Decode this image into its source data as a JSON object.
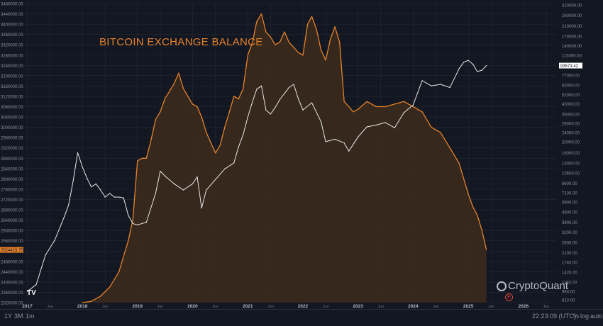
{
  "title": "BITCOIN EXCHANGE BALANCE",
  "logo_text": "CryptoQuant",
  "tv_logo": "TV",
  "event_marker": "E",
  "timeframes": [
    "1Y",
    "3M",
    "1m"
  ],
  "clock": "22:23:09 (UTC)",
  "options": [
    "%",
    "log",
    "auto"
  ],
  "colors": {
    "background": "#131722",
    "balance": "#e6822a",
    "price": "#e8e8e8",
    "grid": "#2a2e39"
  },
  "chart_data": {
    "type": "line",
    "title": "BITCOIN EXCHANGE BALANCE",
    "x_ticks": [
      "2017",
      "Jun",
      "2018",
      "Jun",
      "2019",
      "Jun",
      "2020",
      "Jun",
      "2021",
      "Jun",
      "2022",
      "Jun",
      "2023",
      "Jun",
      "2024",
      "Jun",
      "2025",
      "Jun",
      "2026",
      "Jun"
    ],
    "x_tick_dates": [
      "2017-01",
      "2017-06",
      "2018-01",
      "2018-06",
      "2019-01",
      "2019-06",
      "2020-01",
      "2020-06",
      "2021-01",
      "2021-06",
      "2022-01",
      "2022-06",
      "2023-01",
      "2023-06",
      "2024-01",
      "2024-06",
      "2025-01",
      "2025-06",
      "2026-01",
      "2026-06"
    ],
    "left_axis": {
      "ticks": [
        "3480000.00",
        "3440000.00",
        "3400000.00",
        "3360000.00",
        "3320000.00",
        "3280000.00",
        "3240000.00",
        "3200000.00",
        "3160000.00",
        "3120000.00",
        "3080000.00",
        "3040000.00",
        "3000000.00",
        "2960000.00",
        "2920000.00",
        "2880000.00",
        "2840000.00",
        "2800000.00",
        "2760000.00",
        "2720000.00",
        "2680000.00",
        "2640000.00",
        "2600000.00",
        "2560000.00",
        "2520000.00",
        "2480000.00",
        "2440000.00",
        "2400000.00",
        "2360000.00",
        "2320000.00"
      ],
      "range": [
        2320000,
        3480000
      ],
      "current_label": "2524423.75"
    },
    "right_axis": {
      "ticks": [
        "320000.00",
        "260000.00",
        "210000.00",
        "170000.00",
        "140000.00",
        "115000.00",
        "93000.00",
        "77000.00",
        "63000.00",
        "52000.00",
        "43000.00",
        "35000.00",
        "29000.00",
        "24000.00",
        "20000.00",
        "16000.00",
        "13000.00",
        "10600.00",
        "8600.00",
        "7100.00",
        "5900.00",
        "4800.00",
        "3900.00",
        "3200.00",
        "2600.00",
        "2100.00",
        "1740.00",
        "1420.00",
        "1160.00",
        "960.00",
        "810.00"
      ],
      "scale": "log",
      "current_label": "93573.42"
    },
    "series": [
      {
        "name": "Exchange Balance",
        "axis": "left",
        "color": "#e6822a",
        "style": "area",
        "x": [
          "2018-01",
          "2018-03",
          "2018-05",
          "2018-07",
          "2018-09",
          "2018-10",
          "2018-11",
          "2018-12",
          "2019-01",
          "2019-02",
          "2019-03",
          "2019-04",
          "2019-05",
          "2019-06",
          "2019-07",
          "2019-08",
          "2019-09",
          "2019-10",
          "2019-11",
          "2019-12",
          "2020-01",
          "2020-02",
          "2020-03",
          "2020-04",
          "2020-05",
          "2020-06",
          "2020-07",
          "2020-08",
          "2020-09",
          "2020-10",
          "2020-11",
          "2020-12",
          "2021-01",
          "2021-02",
          "2021-03",
          "2021-04",
          "2021-05",
          "2021-06",
          "2021-07",
          "2021-08",
          "2021-09",
          "2021-10",
          "2021-11",
          "2021-12",
          "2022-01",
          "2022-02",
          "2022-03",
          "2022-04",
          "2022-05",
          "2022-06",
          "2022-07",
          "2022-08",
          "2022-09",
          "2022-10",
          "2022-11",
          "2022-12",
          "2023-01",
          "2023-03",
          "2023-05",
          "2023-07",
          "2023-09",
          "2023-11",
          "2024-01",
          "2024-03",
          "2024-05",
          "2024-07",
          "2024-09",
          "2024-11",
          "2025-01",
          "2025-02",
          "2025-03",
          "2025-04",
          "2025-05"
        ],
        "values": [
          2320000,
          2325000,
          2345000,
          2380000,
          2440000,
          2500000,
          2560000,
          2640000,
          2870000,
          2880000,
          2880000,
          2950000,
          3030000,
          3060000,
          3110000,
          3140000,
          3170000,
          3210000,
          3150000,
          3120000,
          3090000,
          3080000,
          3040000,
          2980000,
          2940000,
          2900000,
          2930000,
          3000000,
          3060000,
          3120000,
          3110000,
          3150000,
          3280000,
          3330000,
          3410000,
          3440000,
          3370000,
          3350000,
          3320000,
          3330000,
          3370000,
          3330000,
          3310000,
          3290000,
          3280000,
          3400000,
          3430000,
          3380000,
          3300000,
          3260000,
          3340000,
          3390000,
          3330000,
          3100000,
          3080000,
          3060000,
          3070000,
          3100000,
          3080000,
          3080000,
          3090000,
          3100000,
          3080000,
          3060000,
          3000000,
          2980000,
          2920000,
          2860000,
          2740000,
          2690000,
          2660000,
          2600000,
          2524423.75
        ]
      },
      {
        "name": "BTC Price",
        "axis": "right",
        "color": "#e8e8e8",
        "style": "line",
        "x": [
          "2017-01",
          "2017-03",
          "2017-05",
          "2017-07",
          "2017-09",
          "2017-10",
          "2017-11",
          "2017-12",
          "2018-01",
          "2018-02",
          "2018-03",
          "2018-04",
          "2018-05",
          "2018-06",
          "2018-07",
          "2018-08",
          "2018-09",
          "2018-10",
          "2018-11",
          "2018-12",
          "2019-01",
          "2019-03",
          "2019-05",
          "2019-06",
          "2019-07",
          "2019-09",
          "2019-11",
          "2020-01",
          "2020-02",
          "2020-03",
          "2020-04",
          "2020-06",
          "2020-08",
          "2020-10",
          "2020-11",
          "2020-12",
          "2021-01",
          "2021-02",
          "2021-03",
          "2021-04",
          "2021-05",
          "2021-06",
          "2021-07",
          "2021-08",
          "2021-10",
          "2021-11",
          "2021-12",
          "2022-01",
          "2022-03",
          "2022-05",
          "2022-06",
          "2022-08",
          "2022-10",
          "2022-11",
          "2023-01",
          "2023-03",
          "2023-05",
          "2023-07",
          "2023-09",
          "2023-11",
          "2024-01",
          "2024-03",
          "2024-05",
          "2024-07",
          "2024-09",
          "2024-11",
          "2024-12",
          "2025-01",
          "2025-02",
          "2025-03",
          "2025-04",
          "2025-05"
        ],
        "values": [
          960,
          1100,
          2000,
          2700,
          4300,
          5500,
          9000,
          16000,
          12000,
          9500,
          8000,
          8500,
          7500,
          6500,
          7000,
          6500,
          6500,
          6400,
          4500,
          3800,
          3700,
          3900,
          7000,
          11000,
          10000,
          8500,
          7500,
          8500,
          9800,
          5200,
          7500,
          9300,
          11500,
          13000,
          18000,
          23000,
          33000,
          45000,
          58000,
          62000,
          38000,
          35000,
          40000,
          47000,
          60000,
          64000,
          48000,
          38000,
          44000,
          30000,
          20000,
          21000,
          19500,
          16500,
          22000,
          27000,
          28000,
          29500,
          26500,
          36000,
          42000,
          69000,
          62000,
          64000,
          60000,
          88000,
          100000,
          104000,
          96000,
          83000,
          85000,
          93573.42
        ]
      }
    ]
  }
}
